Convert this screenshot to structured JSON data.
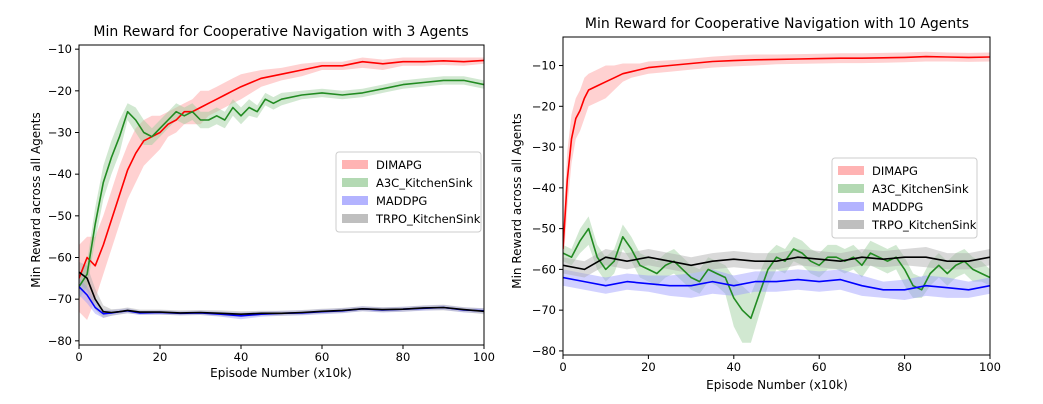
{
  "chart_data": [
    {
      "type": "line",
      "title": "Min Reward for Cooperative Navigation with 3 Agents",
      "xlabel": "Episode Number (x10k)",
      "ylabel": "Min Reward across all Agents",
      "xlim": [
        0,
        100
      ],
      "ylim": [
        -81,
        -9
      ],
      "xticks": [
        0,
        20,
        40,
        60,
        80,
        100
      ],
      "yticks": [
        -80,
        -70,
        -60,
        -50,
        -40,
        -30,
        -20,
        -10
      ],
      "legend_position": "center-right",
      "series": [
        {
          "name": "DIMAPG",
          "color": "#ff0000",
          "band_color": "#ff9999",
          "x": [
            0,
            2,
            4,
            6,
            8,
            10,
            12,
            14,
            16,
            18,
            20,
            22,
            24,
            26,
            28,
            30,
            32,
            34,
            36,
            38,
            40,
            45,
            50,
            55,
            60,
            65,
            70,
            75,
            80,
            85,
            90,
            95,
            100
          ],
          "y": [
            -65,
            -60,
            -62,
            -57,
            -51,
            -45,
            -39,
            -35,
            -32,
            -31,
            -30,
            -28,
            -27,
            -25,
            -25,
            -24,
            -23,
            -22,
            -21,
            -20,
            -19,
            -17,
            -16,
            -15,
            -14,
            -14,
            -13,
            -13.5,
            -13,
            -13,
            -12.8,
            -13,
            -12.7
          ],
          "lower": [
            -73,
            -75,
            -70,
            -64,
            -58,
            -52,
            -46,
            -42,
            -38,
            -36,
            -34,
            -31,
            -30,
            -28,
            -28,
            -28,
            -26,
            -25,
            -24,
            -23,
            -22,
            -19,
            -17.5,
            -16.5,
            -15,
            -15,
            -14.5,
            -15,
            -14,
            -14,
            -13.8,
            -14,
            -13.5
          ],
          "upper": [
            -57,
            -55,
            -55,
            -50,
            -44,
            -38,
            -33,
            -29,
            -27,
            -26,
            -26,
            -25,
            -24,
            -23,
            -22,
            -20,
            -20,
            -19,
            -18,
            -17,
            -16,
            -15,
            -14.5,
            -13.5,
            -13,
            -13,
            -12,
            -12.5,
            -12,
            -12,
            -12,
            -12,
            -12
          ]
        },
        {
          "name": "A3C_KitchenSink",
          "color": "#228b22",
          "band_color": "#99cc99",
          "x": [
            0,
            2,
            4,
            6,
            8,
            10,
            12,
            14,
            16,
            18,
            20,
            22,
            24,
            26,
            28,
            30,
            32,
            34,
            36,
            38,
            40,
            42,
            44,
            46,
            48,
            50,
            55,
            60,
            65,
            70,
            75,
            80,
            85,
            90,
            95,
            100
          ],
          "y": [
            -67,
            -64,
            -52,
            -42,
            -36,
            -31,
            -25,
            -27,
            -30,
            -31,
            -29,
            -27,
            -25,
            -26,
            -25,
            -27,
            -27,
            -26,
            -27,
            -24,
            -26,
            -24,
            -25,
            -22,
            -23,
            -22,
            -21,
            -20.5,
            -21,
            -20.5,
            -19.5,
            -18.5,
            -18,
            -17.5,
            -17.5,
            -18.5
          ],
          "lower": [
            -70,
            -67,
            -56,
            -46,
            -40,
            -35,
            -27,
            -30,
            -33,
            -33,
            -31,
            -29,
            -27,
            -28,
            -27,
            -29,
            -29,
            -28,
            -29,
            -26,
            -28,
            -26,
            -26.5,
            -23.5,
            -24.5,
            -23.5,
            -22,
            -21.5,
            -22,
            -21.5,
            -20.5,
            -19.5,
            -19,
            -18.5,
            -18.5,
            -19.5
          ],
          "upper": [
            -64,
            -61,
            -48,
            -38,
            -32,
            -27,
            -23,
            -24,
            -27,
            -29,
            -27,
            -25,
            -23,
            -24,
            -23,
            -25,
            -25,
            -24,
            -25,
            -22,
            -24,
            -22,
            -23.5,
            -20.5,
            -21.5,
            -20.5,
            -20,
            -19.5,
            -20,
            -19.5,
            -18.5,
            -17.5,
            -17,
            -16.5,
            -16.5,
            -17.5
          ]
        },
        {
          "name": "MADDPG",
          "color": "#0000ff",
          "band_color": "#9999ff",
          "x": [
            0,
            2,
            4,
            6,
            8,
            10,
            12,
            15,
            20,
            25,
            30,
            35,
            40,
            45,
            50,
            55,
            60,
            65,
            70,
            75,
            80,
            85,
            90,
            95,
            100
          ],
          "y": [
            -67,
            -69,
            -72,
            -73.5,
            -73.3,
            -73,
            -72.8,
            -73.3,
            -73.2,
            -73.4,
            -73.3,
            -73.6,
            -74,
            -73.6,
            -73.4,
            -73.3,
            -73,
            -72.8,
            -72.3,
            -72.6,
            -72.4,
            -72.2,
            -72,
            -72.6,
            -72.8
          ],
          "lower": [
            -69,
            -71,
            -73.5,
            -74.5,
            -74,
            -73.6,
            -73.4,
            -73.8,
            -73.7,
            -73.9,
            -73.8,
            -74.2,
            -74.8,
            -74.2,
            -74,
            -73.9,
            -73.6,
            -73.4,
            -72.9,
            -73.2,
            -73,
            -72.8,
            -72.6,
            -73.2,
            -73.4
          ],
          "upper": [
            -65,
            -67,
            -70.5,
            -72.5,
            -72.6,
            -72.4,
            -72.2,
            -72.8,
            -72.7,
            -72.9,
            -72.8,
            -73,
            -73.2,
            -73,
            -72.8,
            -72.7,
            -72.4,
            -72.2,
            -71.7,
            -72,
            -71.8,
            -71.6,
            -71.4,
            -72,
            -72.2
          ]
        },
        {
          "name": "TRPO_KitchenSink",
          "color": "#000000",
          "band_color": "#aaaaaa",
          "x": [
            0,
            2,
            4,
            6,
            8,
            10,
            12,
            15,
            20,
            25,
            30,
            35,
            40,
            45,
            50,
            55,
            60,
            65,
            70,
            75,
            80,
            85,
            90,
            95,
            100
          ],
          "y": [
            -63.5,
            -65,
            -70,
            -73,
            -73.2,
            -73,
            -72.7,
            -73.1,
            -73.1,
            -73.3,
            -73.2,
            -73.4,
            -73.6,
            -73.4,
            -73.4,
            -73.2,
            -72.9,
            -72.7,
            -72.3,
            -72.5,
            -72.4,
            -72.1,
            -72,
            -72.5,
            -72.9
          ],
          "lower": [
            -66,
            -68,
            -72.5,
            -74.5,
            -74,
            -73.7,
            -73.4,
            -73.7,
            -73.7,
            -73.9,
            -73.8,
            -74.1,
            -74.3,
            -74,
            -74,
            -73.8,
            -73.5,
            -73.3,
            -72.9,
            -73.1,
            -73,
            -72.7,
            -72.7,
            -73.1,
            -73.6
          ],
          "upper": [
            -61,
            -62,
            -67.5,
            -71.5,
            -72.4,
            -72.3,
            -72,
            -72.5,
            -72.5,
            -72.7,
            -72.6,
            -72.7,
            -72.9,
            -72.8,
            -72.8,
            -72.6,
            -72.3,
            -72.1,
            -71.7,
            -71.9,
            -71.8,
            -71.5,
            -71.3,
            -71.9,
            -72.2
          ]
        }
      ]
    },
    {
      "type": "line",
      "title": "Min Reward for Cooperative Navigation with 10 Agents",
      "xlabel": "Episode Number (x10k)",
      "ylabel": "Min Reward across all Agents",
      "xlim": [
        0,
        100
      ],
      "ylim": [
        -81,
        -3
      ],
      "xticks": [
        0,
        20,
        40,
        60,
        80,
        100
      ],
      "yticks": [
        -80,
        -70,
        -60,
        -50,
        -40,
        -30,
        -20,
        -10
      ],
      "legend_position": "center-right",
      "series": [
        {
          "name": "DIMAPG",
          "color": "#ff0000",
          "band_color": "#ff9999",
          "x": [
            0,
            1,
            2,
            3,
            4,
            5,
            6,
            8,
            10,
            12,
            14,
            16,
            18,
            20,
            25,
            30,
            35,
            40,
            45,
            50,
            55,
            60,
            65,
            70,
            75,
            80,
            85,
            90,
            95,
            100
          ],
          "y": [
            -55,
            -38,
            -28,
            -23,
            -21,
            -18,
            -16,
            -15,
            -14,
            -13,
            -12,
            -11.5,
            -11,
            -10.5,
            -10,
            -9.5,
            -9,
            -8.8,
            -8.6,
            -8.5,
            -8.4,
            -8.3,
            -8.2,
            -8.2,
            -8.1,
            -8,
            -7.8,
            -7.9,
            -8,
            -7.9
          ],
          "lower": [
            -60,
            -45,
            -34,
            -28,
            -26,
            -23,
            -20,
            -19,
            -18,
            -16,
            -14,
            -13,
            -12.5,
            -12,
            -11.5,
            -11,
            -10.5,
            -10.2,
            -10,
            -9.7,
            -9.6,
            -9.5,
            -9.4,
            -9.4,
            -9.3,
            -9.2,
            -9,
            -9,
            -9.1,
            -9
          ],
          "upper": [
            -50,
            -31,
            -22,
            -18,
            -16,
            -13,
            -12,
            -11,
            -10,
            -10,
            -9.5,
            -9.5,
            -9.5,
            -9,
            -8.7,
            -8.3,
            -7.8,
            -7.5,
            -7.3,
            -7.3,
            -7.2,
            -7.1,
            -7,
            -7,
            -6.9,
            -6.8,
            -6.6,
            -6.8,
            -6.9,
            -6.8
          ]
        },
        {
          "name": "A3C_KitchenSink",
          "color": "#228b22",
          "band_color": "#99cc99",
          "x": [
            0,
            2,
            4,
            6,
            8,
            10,
            12,
            14,
            16,
            18,
            20,
            22,
            24,
            26,
            28,
            30,
            32,
            34,
            36,
            38,
            40,
            42,
            44,
            46,
            48,
            50,
            52,
            54,
            56,
            58,
            60,
            62,
            64,
            66,
            68,
            70,
            72,
            74,
            76,
            78,
            80,
            82,
            84,
            86,
            88,
            90,
            92,
            94,
            96,
            98,
            100
          ],
          "y": [
            -56,
            -57,
            -53,
            -50,
            -57,
            -60,
            -58,
            -52,
            -55,
            -59,
            -60,
            -61,
            -59,
            -58,
            -60,
            -62,
            -63,
            -60,
            -61,
            -62,
            -67,
            -70,
            -72,
            -66,
            -60,
            -57,
            -58,
            -55,
            -56,
            -58,
            -59,
            -57,
            -57,
            -58,
            -57,
            -59,
            -56,
            -57,
            -58,
            -57,
            -60,
            -64,
            -65,
            -61,
            -59,
            -61,
            -59,
            -58,
            -60,
            -61,
            -62
          ],
          "lower": [
            -58,
            -59,
            -56,
            -54,
            -60,
            -63,
            -61,
            -55,
            -58,
            -62,
            -63,
            -64,
            -62,
            -61,
            -63,
            -65,
            -66,
            -63,
            -64,
            -66,
            -74,
            -78,
            -78,
            -71,
            -64,
            -60,
            -61,
            -58,
            -59,
            -61,
            -62,
            -60,
            -60,
            -61,
            -60,
            -62,
            -59,
            -60,
            -61,
            -60,
            -64,
            -67,
            -67,
            -64,
            -62,
            -64,
            -62,
            -61,
            -63,
            -63,
            -64
          ],
          "upper": [
            -54,
            -55,
            -50,
            -47,
            -54,
            -57,
            -55,
            -49,
            -52,
            -56,
            -57,
            -58,
            -56,
            -55,
            -57,
            -59,
            -60,
            -57,
            -58,
            -59,
            -62,
            -64,
            -66,
            -61,
            -56,
            -54,
            -55,
            -52,
            -53,
            -55,
            -56,
            -54,
            -54,
            -55,
            -54,
            -56,
            -53,
            -54,
            -55,
            -54,
            -57,
            -61,
            -62,
            -58,
            -56,
            -58,
            -56,
            -55,
            -57,
            -58,
            -60
          ]
        },
        {
          "name": "MADDPG",
          "color": "#0000ff",
          "band_color": "#9999ff",
          "x": [
            0,
            5,
            10,
            15,
            20,
            25,
            30,
            35,
            40,
            45,
            50,
            55,
            60,
            65,
            70,
            75,
            80,
            85,
            90,
            95,
            100
          ],
          "y": [
            -62,
            -63,
            -64,
            -63,
            -63.5,
            -64,
            -64,
            -63,
            -64,
            -63,
            -63,
            -62.5,
            -63,
            -62.5,
            -64,
            -65,
            -65,
            -64,
            -64.5,
            -65,
            -64
          ],
          "lower": [
            -64,
            -65,
            -66,
            -65,
            -65.5,
            -66.5,
            -67,
            -66,
            -66.5,
            -65.5,
            -65.5,
            -65,
            -65.5,
            -65,
            -66.5,
            -67,
            -67.5,
            -66.5,
            -67,
            -67,
            -66
          ],
          "upper": [
            -60,
            -61,
            -62,
            -61,
            -61.5,
            -61.5,
            -61,
            -60,
            -61.5,
            -60.5,
            -60.5,
            -60,
            -60.5,
            -60,
            -61.5,
            -63,
            -62.5,
            -61.5,
            -62,
            -63,
            -62
          ]
        },
        {
          "name": "TRPO_KitchenSink",
          "color": "#000000",
          "band_color": "#aaaaaa",
          "x": [
            0,
            5,
            10,
            15,
            20,
            25,
            30,
            35,
            40,
            45,
            50,
            55,
            60,
            65,
            70,
            75,
            80,
            85,
            90,
            95,
            100
          ],
          "y": [
            -59,
            -60,
            -57,
            -58,
            -57,
            -58,
            -59,
            -58,
            -57.5,
            -58,
            -58,
            -57,
            -57.5,
            -58,
            -57,
            -57.5,
            -57,
            -57,
            -58,
            -58,
            -57
          ],
          "lower": [
            -61,
            -62,
            -59,
            -60,
            -59,
            -60,
            -61,
            -60,
            -59.5,
            -60,
            -60,
            -59,
            -59.5,
            -60,
            -59,
            -59.5,
            -59,
            -59.5,
            -60,
            -60,
            -59
          ],
          "upper": [
            -57,
            -58,
            -55,
            -56,
            -55,
            -56,
            -57,
            -56,
            -55.5,
            -56,
            -56,
            -55,
            -55.5,
            -56,
            -55,
            -55.5,
            -55,
            -54.5,
            -56,
            -56,
            -55
          ]
        }
      ]
    }
  ]
}
